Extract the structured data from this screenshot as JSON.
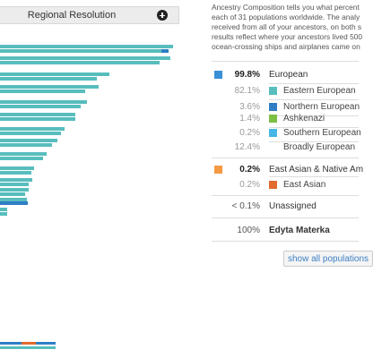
{
  "resolution": {
    "label": "Regional Resolution",
    "button_icon": "plus-circle-icon"
  },
  "intro_lines": [
    "Ancestry Composition tells you what percent",
    "each of 31 populations worldwide. The analy",
    "received from all of your ancestors, on both s",
    "results reflect where your ancestors lived 500",
    "ocean-crossing ships and airplanes came on"
  ],
  "colors": {
    "european": "#3a8fd6",
    "eastern_european": "#58bdbd",
    "northern_european": "#2f7ec4",
    "ashkenazi": "#7dbf42",
    "southern_european": "#45b6e6",
    "east_asian": "#f39a43",
    "east_asian_sub": "#e26a2c"
  },
  "rows": [
    {
      "type": "top",
      "pct": "99.8%",
      "name": "European",
      "color": "#3a8fd6"
    },
    {
      "type": "sub",
      "pct": "82.1%",
      "name": "Eastern European",
      "color": "#58bdbd"
    },
    {
      "type": "sub",
      "pct": "3.6%",
      "name": "Northern European",
      "color": "#2f7ec4"
    },
    {
      "type": "sub",
      "pct": "1.4%",
      "name": "Ashkenazi",
      "color": "#7dbf42"
    },
    {
      "type": "sub",
      "pct": "0.2%",
      "name": "Southern European",
      "color": "#45b6e6"
    },
    {
      "type": "sub",
      "pct": "12.4%",
      "name": "Broadly European",
      "color": ""
    },
    {
      "type": "top",
      "pct": "0.2%",
      "name": "East Asian & Native Am",
      "color": "#f39a43"
    },
    {
      "type": "sub",
      "pct": "0.2%",
      "name": "East Asian",
      "color": "#e26a2c"
    },
    {
      "type": "top",
      "pct": "< 0.1%",
      "name": "Unassigned",
      "color": ""
    },
    {
      "type": "total",
      "pct": "100%",
      "name": "Edyta Materka",
      "color": ""
    }
  ],
  "show_all_label": "show all populations"
}
